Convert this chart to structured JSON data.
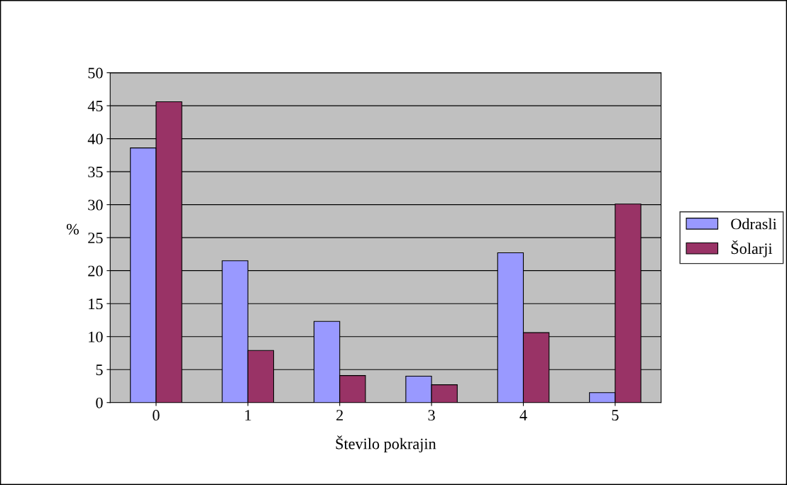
{
  "chart_data": {
    "type": "bar",
    "xlabel": "Število pokrajin",
    "ylabel": "%",
    "categories": [
      "0",
      "1",
      "2",
      "3",
      "4",
      "5"
    ],
    "series": [
      {
        "name": "Odrasli",
        "color": "#9999ff",
        "values": [
          38.6,
          21.5,
          12.3,
          4.0,
          22.7,
          1.5
        ]
      },
      {
        "name": "Šolarji",
        "color": "#993366",
        "values": [
          45.6,
          7.9,
          4.1,
          2.7,
          10.6,
          30.1
        ]
      }
    ],
    "ylim": [
      0,
      50
    ],
    "yticks": [
      0,
      5,
      10,
      15,
      20,
      25,
      30,
      35,
      40,
      45,
      50
    ],
    "grid": "y",
    "legend": "right"
  }
}
